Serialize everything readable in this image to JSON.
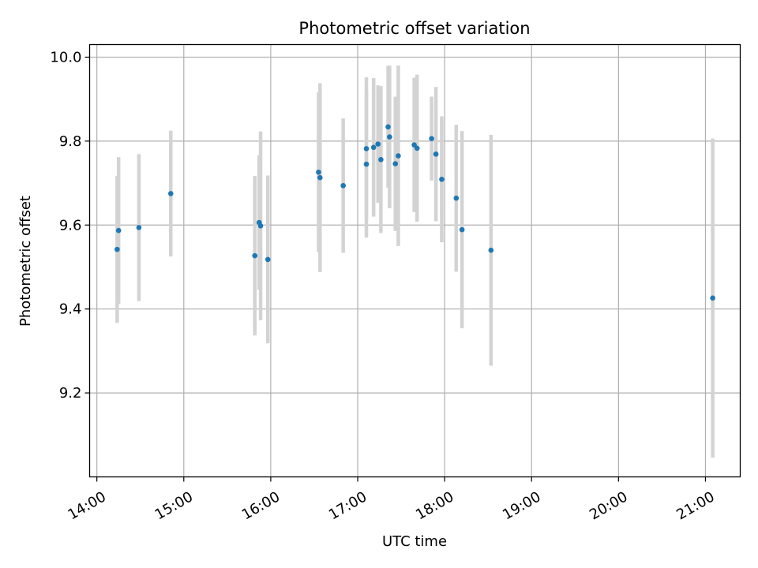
{
  "chart_data": {
    "type": "scatter",
    "title": "Photometric offset variation",
    "xlabel": "UTC time",
    "ylabel": "Photometric offset",
    "x_tick_labels": [
      "14:00",
      "15:00",
      "16:00",
      "17:00",
      "18:00",
      "19:00",
      "20:00",
      "21:00"
    ],
    "y_tick_labels": [
      "9.2",
      "9.4",
      "9.6",
      "9.8",
      "10.0"
    ],
    "y_ticks": [
      9.2,
      9.4,
      9.6,
      9.8,
      10.0
    ],
    "xlim": [
      "13:55",
      "21:24"
    ],
    "ylim": [
      9.0,
      10.03
    ],
    "grid": true,
    "colors": {
      "points": "#1f77b4",
      "errorbars": "#d3d3d3",
      "grid": "#b0b0b0"
    },
    "series": [
      {
        "points": [
          {
            "x": "14:14",
            "y": 9.542,
            "err": 0.175
          },
          {
            "x": "14:15",
            "y": 9.587,
            "err": 0.175
          },
          {
            "x": "14:29",
            "y": 9.594,
            "err": 0.175
          },
          {
            "x": "14:51",
            "y": 9.675,
            "err": 0.15
          },
          {
            "x": "15:49",
            "y": 9.527,
            "err": 0.19
          },
          {
            "x": "15:52",
            "y": 9.606,
            "err": 0.16
          },
          {
            "x": "15:53",
            "y": 9.598,
            "err": 0.225
          },
          {
            "x": "15:58",
            "y": 9.518,
            "err": 0.2
          },
          {
            "x": "16:33",
            "y": 9.726,
            "err": 0.19
          },
          {
            "x": "16:34",
            "y": 9.713,
            "err": 0.225
          },
          {
            "x": "16:50",
            "y": 9.694,
            "err": 0.16
          },
          {
            "x": "17:06",
            "y": 9.782,
            "err": 0.17
          },
          {
            "x": "17:06",
            "y": 9.745,
            "err": 0.175
          },
          {
            "x": "17:11",
            "y": 9.785,
            "err": 0.165
          },
          {
            "x": "17:14",
            "y": 9.793,
            "err": 0.14
          },
          {
            "x": "17:16",
            "y": 9.756,
            "err": 0.175
          },
          {
            "x": "17:21",
            "y": 9.834,
            "err": 0.145
          },
          {
            "x": "17:22",
            "y": 9.81,
            "err": 0.17
          },
          {
            "x": "17:26",
            "y": 9.746,
            "err": 0.16
          },
          {
            "x": "17:28",
            "y": 9.765,
            "err": 0.215
          },
          {
            "x": "17:39",
            "y": 9.791,
            "err": 0.16
          },
          {
            "x": "17:41",
            "y": 9.783,
            "err": 0.175
          },
          {
            "x": "17:51",
            "y": 9.806,
            "err": 0.1
          },
          {
            "x": "17:54",
            "y": 9.769,
            "err": 0.16
          },
          {
            "x": "17:58",
            "y": 9.709,
            "err": 0.15
          },
          {
            "x": "18:08",
            "y": 9.664,
            "err": 0.175
          },
          {
            "x": "18:12",
            "y": 9.589,
            "err": 0.235
          },
          {
            "x": "18:32",
            "y": 9.54,
            "err": 0.275
          },
          {
            "x": "21:05",
            "y": 9.426,
            "err": 0.38
          }
        ]
      }
    ]
  }
}
